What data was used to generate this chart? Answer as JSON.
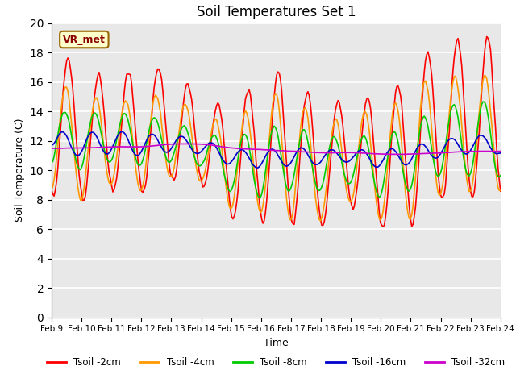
{
  "title": "Soil Temperatures Set 1",
  "xlabel": "Time",
  "ylabel": "Soil Temperature (C)",
  "ylim": [
    0,
    20
  ],
  "yticks": [
    0,
    2,
    4,
    6,
    8,
    10,
    12,
    14,
    16,
    18,
    20
  ],
  "xtick_labels": [
    "Feb 9",
    "Feb 10",
    "Feb 11",
    "Feb 12",
    "Feb 13",
    "Feb 14",
    "Feb 15",
    "Feb 16",
    "Feb 17",
    "Feb 18",
    "Feb 19",
    "Feb 20",
    "Feb 21",
    "Feb 22",
    "Feb 23",
    "Feb 24"
  ],
  "colors": {
    "Tsoil -2cm": "#ff0000",
    "Tsoil -4cm": "#ff9900",
    "Tsoil -8cm": "#00cc00",
    "Tsoil -16cm": "#0000cc",
    "Tsoil -32cm": "#cc00cc"
  },
  "annotation_text": "VR_met",
  "bg_color": "#e8e8e8",
  "grid_color": "white",
  "linewidth": 1.2
}
